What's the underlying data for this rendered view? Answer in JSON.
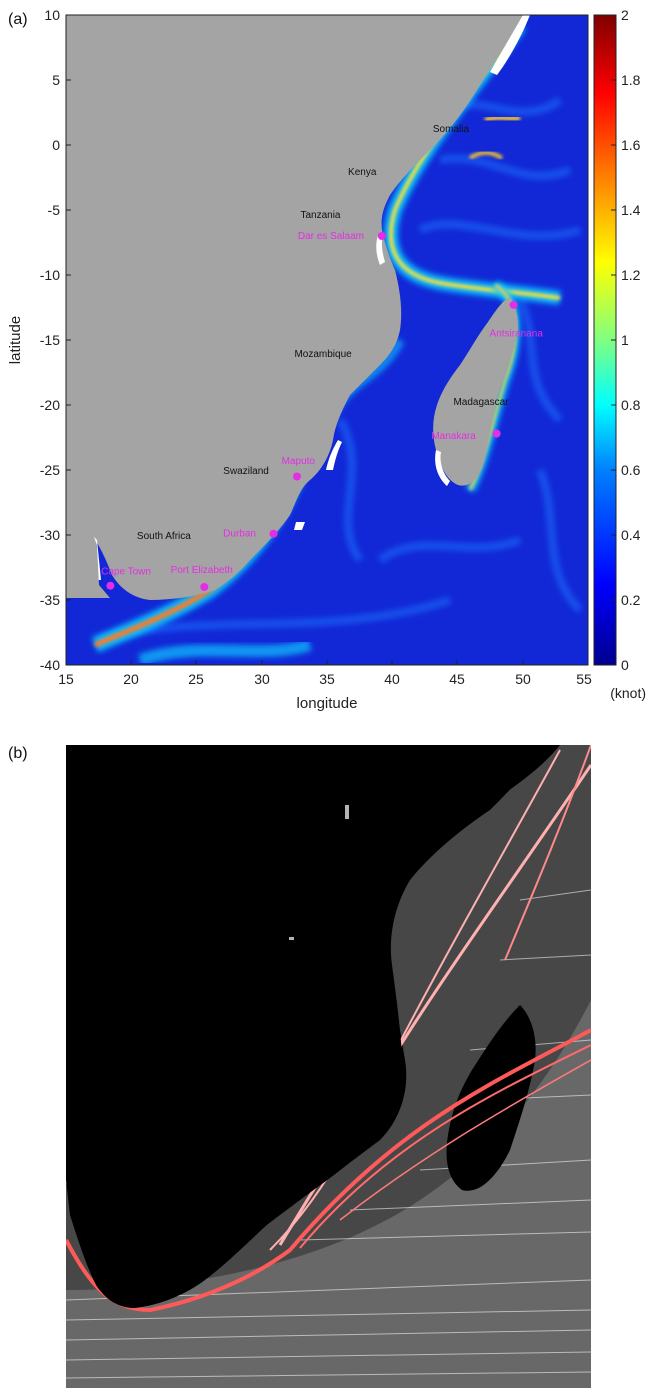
{
  "panel_a": {
    "label": "(a)",
    "xlabel": "longitude",
    "ylabel": "latitude",
    "x_ticks": [
      "15",
      "20",
      "25",
      "30",
      "35",
      "40",
      "45",
      "50",
      "55"
    ],
    "y_ticks": [
      "10",
      "5",
      "0",
      "-5",
      "-10",
      "-15",
      "-20",
      "-25",
      "-30",
      "-35",
      "-40"
    ],
    "colorbar": {
      "ticks": [
        "2",
        "1.8",
        "1.6",
        "1.4",
        "1.2",
        "1",
        "0.8",
        "0.6",
        "0.4",
        "0.2",
        "0"
      ],
      "unit": "(knot)",
      "colors": [
        "#00008f",
        "#0000ff",
        "#0080ff",
        "#00ffff",
        "#80ff80",
        "#ffff00",
        "#ff8000",
        "#ff0000",
        "#800000"
      ]
    },
    "countries": [
      {
        "name": "Somalia",
        "lon": 44.5,
        "lat": 1.0
      },
      {
        "name": "Kenya",
        "lon": 37.7,
        "lat": -2.3
      },
      {
        "name": "Tanzania",
        "lon": 34.5,
        "lat": -5.6
      },
      {
        "name": "Mozambique",
        "lon": 34.7,
        "lat": -16.3
      },
      {
        "name": "Madagascar",
        "lon": 46.8,
        "lat": -20.0
      },
      {
        "name": "Swaziland",
        "lon": 28.8,
        "lat": -25.3
      },
      {
        "name": "South Africa",
        "lon": 22.5,
        "lat": -30.3
      }
    ],
    "cities": [
      {
        "name": "Dar es Salaam",
        "lon": 39.2,
        "lat": -7.0,
        "label_lon": 35.3,
        "label_lat": -7.0
      },
      {
        "name": "Antsiranana",
        "lon": 49.3,
        "lat": -12.3,
        "label_lon": 49.5,
        "label_lat": -14.5
      },
      {
        "name": "Manakara",
        "lon": 48.0,
        "lat": -22.2,
        "label_lon": 44.7,
        "label_lat": -22.4
      },
      {
        "name": "Maputo",
        "lon": 32.7,
        "lat": -25.5,
        "label_lon": 32.8,
        "label_lat": -24.3
      },
      {
        "name": "Durban",
        "lon": 30.9,
        "lat": -29.9,
        "label_lon": 28.3,
        "label_lat": -29.9
      },
      {
        "name": "Port Elizabeth",
        "lon": 25.6,
        "lat": -34.0,
        "label_lon": 25.4,
        "label_lat": -32.7
      },
      {
        "name": "Cape Town",
        "lon": 18.4,
        "lat": -33.9,
        "label_lon": 19.6,
        "label_lat": -32.8
      }
    ],
    "colors": {
      "land": "#a4a4a4",
      "ocean": "#1122d8",
      "city": "#e62de6"
    }
  },
  "panel_b": {
    "label": "(b)",
    "colors": {
      "background": "#000000",
      "tracks": "#ffffff",
      "dense_tracks": "#ff7a7a"
    }
  }
}
